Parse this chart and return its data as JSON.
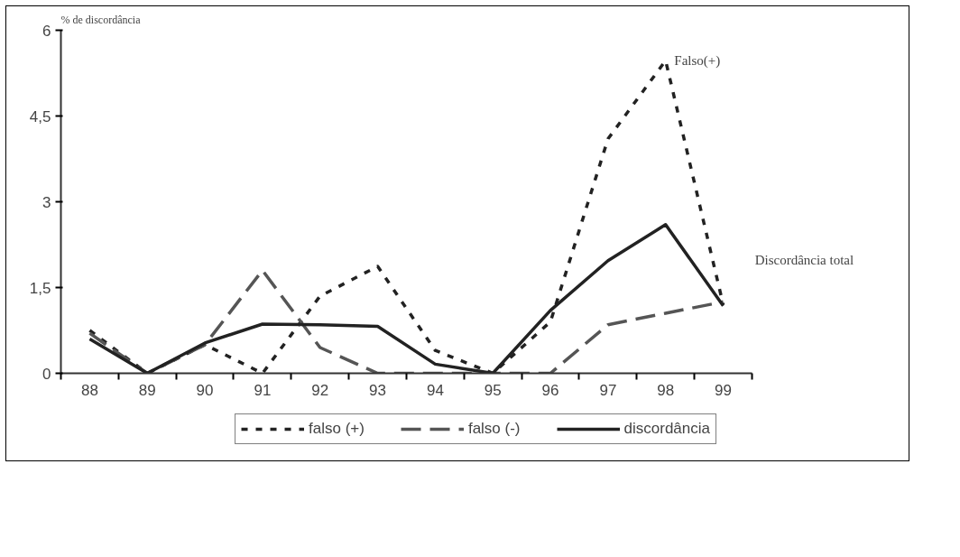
{
  "chart_data": {
    "type": "line",
    "ylabel": "% de discordância",
    "categories": [
      "88",
      "89",
      "90",
      "91",
      "92",
      "93",
      "94",
      "95",
      "96",
      "97",
      "98",
      "99"
    ],
    "series": [
      {
        "name": "falso (+)",
        "color": "#222222",
        "line_style": "dotted",
        "values": [
          0.75,
          0,
          0.5,
          0,
          1.35,
          1.87,
          0.4,
          0,
          0.9,
          4.1,
          5.47,
          1.2
        ]
      },
      {
        "name": "falso (-)",
        "color": "#555555",
        "line_style": "dashed",
        "values": [
          0.7,
          0,
          0.5,
          1.8,
          0.45,
          0,
          0,
          0,
          0,
          0.85,
          1.05,
          1.25
        ]
      },
      {
        "name": "discordância",
        "color": "#222222",
        "line_style": "solid",
        "values": [
          0.6,
          0,
          0.53,
          0.86,
          0.85,
          0.82,
          0.16,
          0,
          1.1,
          1.97,
          2.6,
          1.18
        ]
      }
    ],
    "ylim": [
      0,
      6
    ],
    "yticks": [
      0,
      {
        "value": 1.5,
        "label": "1,5"
      },
      3,
      {
        "value": 4.5,
        "label": "4,5"
      },
      6
    ],
    "annotations": [
      {
        "text": "Falso(+)",
        "x": "98",
        "y": 5.47
      },
      "Discordância total"
    ],
    "legend": "bottom",
    "grid": false,
    "marker": "none"
  }
}
